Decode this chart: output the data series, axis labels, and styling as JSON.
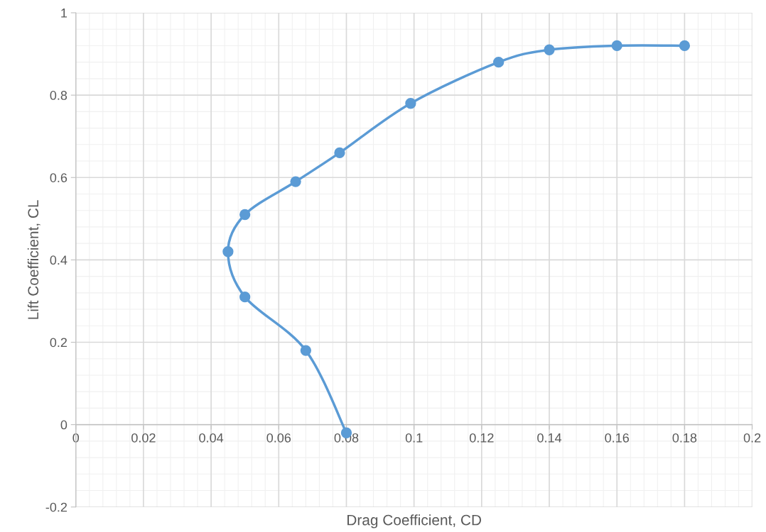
{
  "chart_data": {
    "type": "line",
    "xlabel": "Drag Coefficient, CD",
    "ylabel": "Lift Coefficient, CL",
    "series": [
      {
        "color": "#5b9bd5",
        "x": [
          0.08,
          0.068,
          0.05,
          0.045,
          0.05,
          0.065,
          0.078,
          0.099,
          0.125,
          0.14,
          0.16,
          0.18
        ],
        "values": [
          -0.02,
          0.18,
          0.31,
          0.42,
          0.51,
          0.59,
          0.66,
          0.78,
          0.88,
          0.91,
          0.92,
          0.92
        ]
      }
    ],
    "marker": "circle",
    "line_style": "solid",
    "grid": true,
    "xlim": [
      0,
      0.2
    ],
    "xticks": [
      0,
      0.02,
      0.04,
      0.06,
      0.08,
      0.1,
      0.12,
      0.14,
      0.16,
      0.18,
      0.2
    ],
    "ylim": [
      -0.2,
      1
    ],
    "yticks": [
      -0.2,
      0,
      0.2,
      0.4,
      0.6,
      0.8,
      1
    ]
  }
}
